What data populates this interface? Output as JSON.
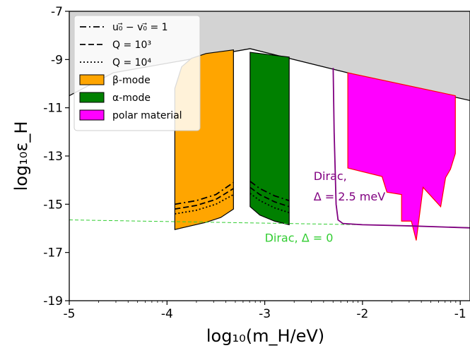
{
  "chart_data": {
    "type": "area",
    "title": "",
    "xlabel": "log₁₀(m_H/eV)",
    "ylabel": "log₁₀ε_H",
    "xlim": [
      -5,
      -0.9
    ],
    "ylim": [
      -19,
      -7
    ],
    "xticks": [
      -5,
      -4,
      -3,
      -2,
      -1
    ],
    "yticks": [
      -19,
      -17,
      -15,
      -13,
      -11,
      -9,
      -7
    ],
    "grid": false,
    "legend_position": "top-left",
    "legend": [
      {
        "label": "u₀⃗ − v₀⃗ = 1",
        "style": "dashdot",
        "color": "#000000"
      },
      {
        "label": "Q = 10³",
        "style": "dashed",
        "color": "#000000"
      },
      {
        "label": "Q = 10⁴",
        "style": "dotted",
        "color": "#000000"
      },
      {
        "label": "β-mode",
        "style": "patch",
        "color": "#FFA500"
      },
      {
        "label": "α-mode",
        "style": "patch",
        "color": "#008000"
      },
      {
        "label": "polar material",
        "style": "patch",
        "color": "#FF00FF"
      }
    ],
    "excluded_region": {
      "color": "#D3D3D3",
      "boundary": [
        [
          -5,
          -10.5
        ],
        [
          -4.55,
          -9.55
        ],
        [
          -3.15,
          -8.55
        ],
        [
          -2.1,
          -9.6
        ],
        [
          -0.9,
          -10.7
        ]
      ]
    },
    "series": [
      {
        "name": "β-mode",
        "kind": "fill",
        "color": "#FFA500",
        "polygon": [
          [
            -3.92,
            -16.05
          ],
          [
            -3.92,
            -10.2
          ],
          [
            -3.85,
            -9.3
          ],
          [
            -3.75,
            -8.95
          ],
          [
            -3.6,
            -8.75
          ],
          [
            -3.32,
            -8.6
          ],
          [
            -3.32,
            -15.2
          ],
          [
            -3.45,
            -15.55
          ],
          [
            -3.6,
            -15.75
          ],
          [
            -3.92,
            -16.05
          ]
        ]
      },
      {
        "name": "α-mode",
        "kind": "fill",
        "color": "#008000",
        "polygon": [
          [
            -3.15,
            -8.7
          ],
          [
            -2.75,
            -8.9
          ],
          [
            -2.75,
            -15.85
          ],
          [
            -2.9,
            -15.7
          ],
          [
            -3.05,
            -15.45
          ],
          [
            -3.15,
            -15.1
          ],
          [
            -3.15,
            -8.7
          ]
        ]
      },
      {
        "name": "polar material",
        "kind": "fill",
        "color": "#FF00FF",
        "polygon": [
          [
            -2.15,
            -9.55
          ],
          [
            -1.05,
            -10.5
          ],
          [
            -1.05,
            -12.9
          ],
          [
            -1.1,
            -13.55
          ],
          [
            -1.15,
            -13.9
          ],
          [
            -1.2,
            -15.1
          ],
          [
            -1.38,
            -14.3
          ],
          [
            -1.45,
            -16.5
          ],
          [
            -1.5,
            -15.7
          ],
          [
            -1.6,
            -15.7
          ],
          [
            -1.6,
            -14.6
          ],
          [
            -1.75,
            -14.5
          ],
          [
            -1.8,
            -13.85
          ],
          [
            -2.15,
            -13.5
          ],
          [
            -2.15,
            -9.55
          ]
        ]
      },
      {
        "name": "β-mode dashdot",
        "kind": "line",
        "style": "dashdot",
        "color": "#000000",
        "points": [
          [
            -3.92,
            -15.0
          ],
          [
            -3.7,
            -14.85
          ],
          [
            -3.5,
            -14.6
          ],
          [
            -3.32,
            -14.1
          ]
        ]
      },
      {
        "name": "β-mode dashed",
        "kind": "line",
        "style": "dashed",
        "color": "#000000",
        "points": [
          [
            -3.92,
            -15.2
          ],
          [
            -3.7,
            -15.05
          ],
          [
            -3.5,
            -14.8
          ],
          [
            -3.32,
            -14.35
          ]
        ]
      },
      {
        "name": "β-mode dotted",
        "kind": "line",
        "style": "dotted",
        "color": "#000000",
        "points": [
          [
            -3.92,
            -15.4
          ],
          [
            -3.7,
            -15.25
          ],
          [
            -3.5,
            -15.0
          ],
          [
            -3.32,
            -14.6
          ]
        ]
      },
      {
        "name": "α-mode dashdot",
        "kind": "line",
        "style": "dashdot",
        "color": "#000000",
        "points": [
          [
            -3.15,
            -14.05
          ],
          [
            -3.05,
            -14.35
          ],
          [
            -2.9,
            -14.65
          ],
          [
            -2.75,
            -14.85
          ]
        ]
      },
      {
        "name": "α-mode dashed",
        "kind": "line",
        "style": "dashed",
        "color": "#000000",
        "points": [
          [
            -3.15,
            -14.3
          ],
          [
            -3.05,
            -14.6
          ],
          [
            -2.9,
            -14.9
          ],
          [
            -2.75,
            -15.1
          ]
        ]
      },
      {
        "name": "α-mode dotted",
        "kind": "line",
        "style": "dotted",
        "color": "#000000",
        "points": [
          [
            -3.15,
            -14.55
          ],
          [
            -3.05,
            -14.85
          ],
          [
            -2.9,
            -15.15
          ],
          [
            -2.75,
            -15.35
          ]
        ]
      },
      {
        "name": "Dirac Δ=0",
        "kind": "line",
        "style": "dashed-thin",
        "color": "#32CD32",
        "points": [
          [
            -5,
            -15.65
          ],
          [
            -3.5,
            -15.75
          ],
          [
            -2.0,
            -15.85
          ],
          [
            -0.9,
            -15.97
          ]
        ]
      },
      {
        "name": "Dirac Δ=0 solid",
        "kind": "line",
        "style": "solid-thin",
        "color": "#32CD32",
        "points": [
          [
            -2.0,
            -15.85
          ],
          [
            -0.9,
            -15.97
          ]
        ]
      },
      {
        "name": "Dirac Δ=2.5 meV",
        "kind": "line",
        "style": "solid",
        "color": "#800080",
        "points": [
          [
            -2.3,
            -9.35
          ],
          [
            -2.29,
            -12.0
          ],
          [
            -2.27,
            -15.0
          ],
          [
            -2.25,
            -15.65
          ],
          [
            -2.2,
            -15.8
          ],
          [
            -2.0,
            -15.85
          ],
          [
            -1.5,
            -15.9
          ],
          [
            -0.9,
            -15.98
          ]
        ]
      }
    ],
    "annotations": [
      {
        "text": "Dirac,",
        "x": -2.5,
        "y": -14.0,
        "color": "#800080"
      },
      {
        "text": "Δ = 2.5 meV",
        "x": -2.5,
        "y": -14.85,
        "color": "#800080"
      },
      {
        "text": "Dirac, Δ = 0",
        "x": -3.0,
        "y": -16.55,
        "color": "#32CD32"
      }
    ]
  }
}
